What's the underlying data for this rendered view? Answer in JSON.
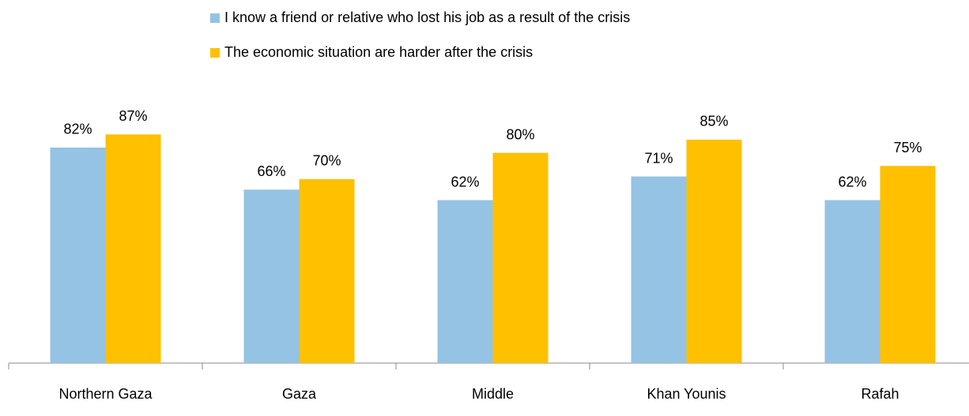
{
  "chart_data": {
    "type": "bar",
    "categories": [
      "Northern Gaza",
      "Gaza",
      "Middle",
      "Khan Younis",
      "Rafah"
    ],
    "series": [
      {
        "name": "I know a friend or relative who lost his job as a result of the crisis",
        "color": "#95c3e4",
        "values": [
          82,
          66,
          62,
          71,
          62
        ],
        "value_labels": [
          "82%",
          "66%",
          "62%",
          "71%",
          "62%"
        ]
      },
      {
        "name": "The economic situation are harder after the crisis",
        "color": "#ffc000",
        "values": [
          87,
          70,
          80,
          85,
          75
        ],
        "value_labels": [
          "87%",
          "70%",
          "80%",
          "85%",
          "75%"
        ]
      }
    ],
    "ylim": [
      0,
      100
    ]
  }
}
